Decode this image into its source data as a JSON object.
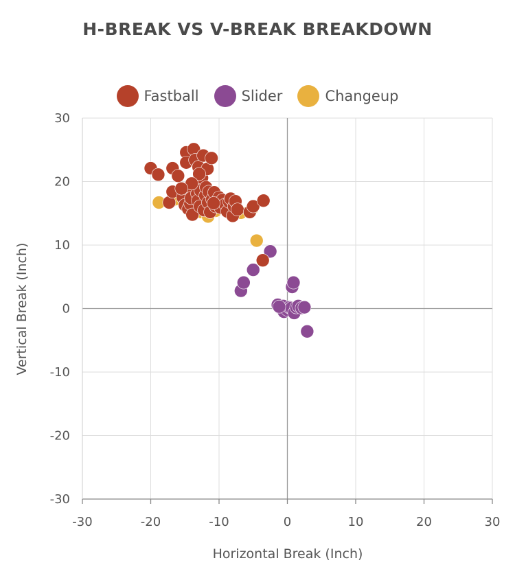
{
  "chart_data": {
    "type": "scatter",
    "title": "H-BREAK VS V-BREAK BREAKDOWN",
    "xlabel": "Horizontal Break (Inch)",
    "ylabel": "Vertical Break (Inch)",
    "xlim": [
      -30,
      30
    ],
    "ylim": [
      -30,
      30
    ],
    "xticks": [
      -30,
      -20,
      -10,
      0,
      10,
      20,
      30
    ],
    "yticks": [
      -30,
      -20,
      -10,
      0,
      10,
      20,
      30
    ],
    "grid": true,
    "legend_position": "top-center",
    "series": [
      {
        "name": "Changeup",
        "color": "#E9B13F",
        "points": [
          [
            -18.8,
            16.7
          ],
          [
            -16.5,
            17.2
          ],
          [
            -15.0,
            16.8
          ],
          [
            -13.8,
            16.0
          ],
          [
            -12.6,
            15.2
          ],
          [
            -11.6,
            14.5
          ],
          [
            -10.5,
            15.4
          ],
          [
            -9.5,
            15.8
          ],
          [
            -8.2,
            15.6
          ],
          [
            -6.8,
            15.1
          ],
          [
            -5.2,
            15.7
          ],
          [
            -4.5,
            10.7
          ],
          [
            -11.0,
            16.3
          ],
          [
            -14.2,
            15.6
          ]
        ]
      },
      {
        "name": "Slider",
        "color": "#8B4A93",
        "points": [
          [
            -6.8,
            2.8
          ],
          [
            -6.4,
            4.1
          ],
          [
            -5.0,
            6.1
          ],
          [
            -2.5,
            9.0
          ],
          [
            -1.4,
            0.6
          ],
          [
            -1.0,
            0.1
          ],
          [
            -0.6,
            0.4
          ],
          [
            -0.5,
            -0.5
          ],
          [
            0.0,
            -0.2
          ],
          [
            0.3,
            0.2
          ],
          [
            0.6,
            0.1
          ],
          [
            0.7,
            3.4
          ],
          [
            0.9,
            4.1
          ],
          [
            1.0,
            -0.7
          ],
          [
            1.3,
            0.2
          ],
          [
            1.6,
            0.4
          ],
          [
            2.1,
            0.1
          ],
          [
            2.5,
            0.2
          ],
          [
            2.9,
            -3.6
          ],
          [
            -1.2,
            0.3
          ]
        ]
      },
      {
        "name": "Fastball",
        "color": "#B5412A",
        "points": [
          [
            -20.0,
            22.1
          ],
          [
            -18.9,
            21.1
          ],
          [
            -17.3,
            16.7
          ],
          [
            -16.8,
            18.4
          ],
          [
            -16.8,
            22.1
          ],
          [
            -16.0,
            20.9
          ],
          [
            -15.3,
            17.5
          ],
          [
            -15.0,
            16.3
          ],
          [
            -14.8,
            24.6
          ],
          [
            -14.8,
            23.0
          ],
          [
            -14.6,
            18.9
          ],
          [
            -14.5,
            15.7
          ],
          [
            -14.2,
            16.5
          ],
          [
            -14.1,
            17.4
          ],
          [
            -13.9,
            14.8
          ],
          [
            -13.7,
            25.1
          ],
          [
            -13.5,
            23.4
          ],
          [
            -13.4,
            19.5
          ],
          [
            -13.2,
            18.1
          ],
          [
            -13.1,
            17.0
          ],
          [
            -13.0,
            22.3
          ],
          [
            -12.8,
            16.1
          ],
          [
            -12.7,
            18.6
          ],
          [
            -12.5,
            20.6
          ],
          [
            -12.3,
            24.1
          ],
          [
            -12.2,
            15.5
          ],
          [
            -12.0,
            17.8
          ],
          [
            -11.9,
            19.1
          ],
          [
            -11.7,
            22.0
          ],
          [
            -11.6,
            16.7
          ],
          [
            -11.5,
            18.4
          ],
          [
            -11.3,
            15.2
          ],
          [
            -11.1,
            23.7
          ],
          [
            -11.0,
            17.2
          ],
          [
            -10.7,
            18.3
          ],
          [
            -10.5,
            16.1
          ],
          [
            -10.3,
            16.8
          ],
          [
            -10.0,
            17.5
          ],
          [
            -9.8,
            15.9
          ],
          [
            -9.5,
            17.1
          ],
          [
            -9.1,
            16.4
          ],
          [
            -8.8,
            15.3
          ],
          [
            -8.5,
            16.8
          ],
          [
            -8.3,
            17.3
          ],
          [
            -8.0,
            14.6
          ],
          [
            -7.8,
            16.1
          ],
          [
            -7.6,
            16.9
          ],
          [
            -7.3,
            15.6
          ],
          [
            -5.5,
            15.2
          ],
          [
            -5.0,
            16.1
          ],
          [
            -3.5,
            17.0
          ],
          [
            -3.6,
            7.6
          ],
          [
            -12.9,
            21.2
          ],
          [
            -14.0,
            19.7
          ],
          [
            -15.5,
            18.9
          ],
          [
            -10.8,
            16.6
          ]
        ]
      }
    ],
    "legend": [
      "Fastball",
      "Slider",
      "Changeup"
    ]
  }
}
